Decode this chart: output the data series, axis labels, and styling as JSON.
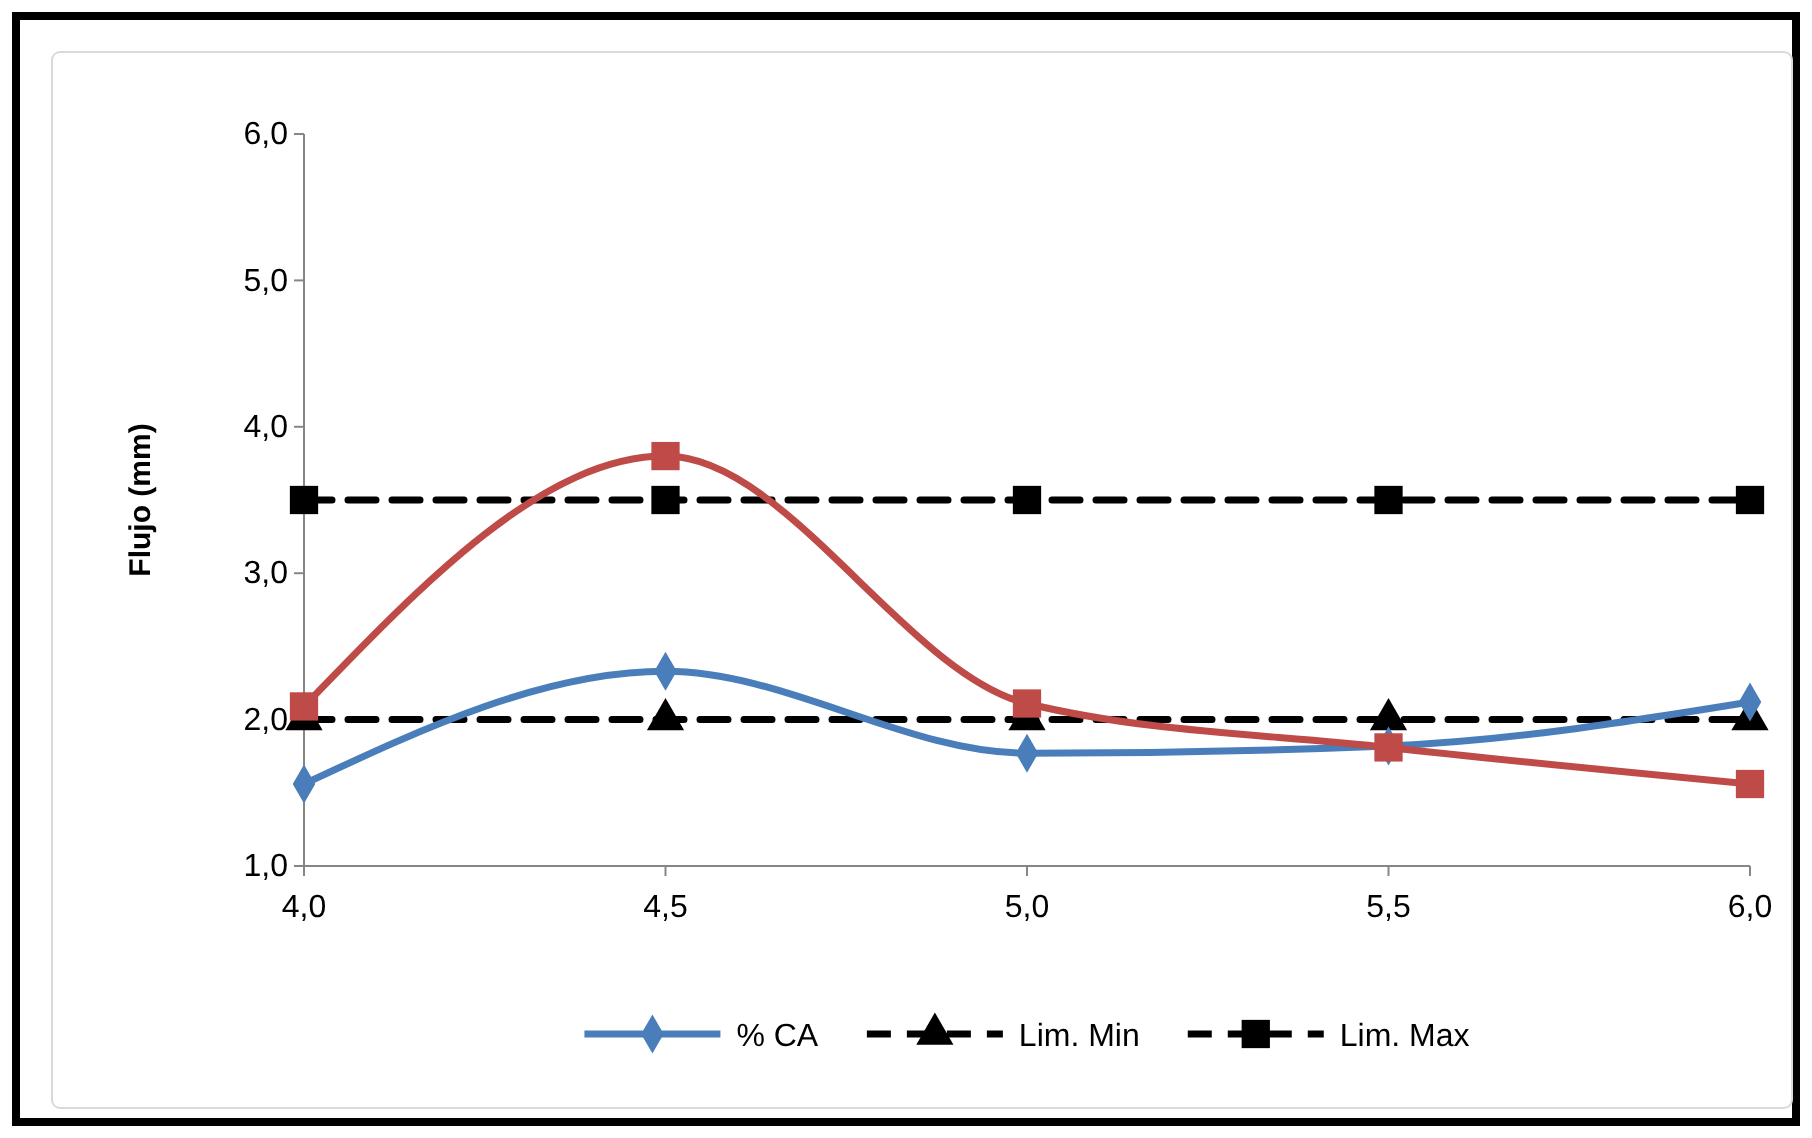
{
  "chart_data": {
    "type": "line",
    "ylabel": "Flujo (mm)",
    "x": [
      4.0,
      4.5,
      5.0,
      5.5,
      6.0
    ],
    "xlim": [
      4.0,
      6.0
    ],
    "xticks": [
      {
        "value": 4.0,
        "label": "4,0"
      },
      {
        "value": 4.5,
        "label": "4,5"
      },
      {
        "value": 5.0,
        "label": "5,0"
      },
      {
        "value": 5.5,
        "label": "5,5"
      },
      {
        "value": 6.0,
        "label": "6,0"
      }
    ],
    "ylim": [
      1.0,
      6.0
    ],
    "yticks": [
      {
        "value": 1,
        "label": "1,0"
      },
      {
        "value": 2,
        "label": "2,0"
      },
      {
        "value": 3,
        "label": "3,0"
      },
      {
        "value": 4,
        "label": "4,0"
      },
      {
        "value": 5,
        "label": "5,0"
      },
      {
        "value": 6,
        "label": "6,0"
      }
    ],
    "grid": false,
    "legend": "bottom",
    "series": [
      {
        "name": "% CA",
        "color": "#4a7ebb",
        "marker": "diamond",
        "line_style": "solid",
        "values": [
          1.56,
          2.33,
          1.77,
          1.82,
          2.12
        ]
      },
      {
        "color": "#be4b48",
        "marker": "square",
        "line_style": "solid",
        "values": [
          2.09,
          3.8,
          2.11,
          1.81,
          1.56
        ]
      },
      {
        "name": "Lim. Min",
        "color": "#000000",
        "marker": "triangle",
        "line_style": "dashed",
        "values": [
          2.0,
          2.0,
          2.0,
          2.0,
          2.0
        ]
      },
      {
        "name": "Lim. Max",
        "color": "#000000",
        "marker": "square",
        "line_style": "dashed",
        "values": [
          3.5,
          3.5,
          3.5,
          3.5,
          3.5
        ]
      }
    ]
  }
}
